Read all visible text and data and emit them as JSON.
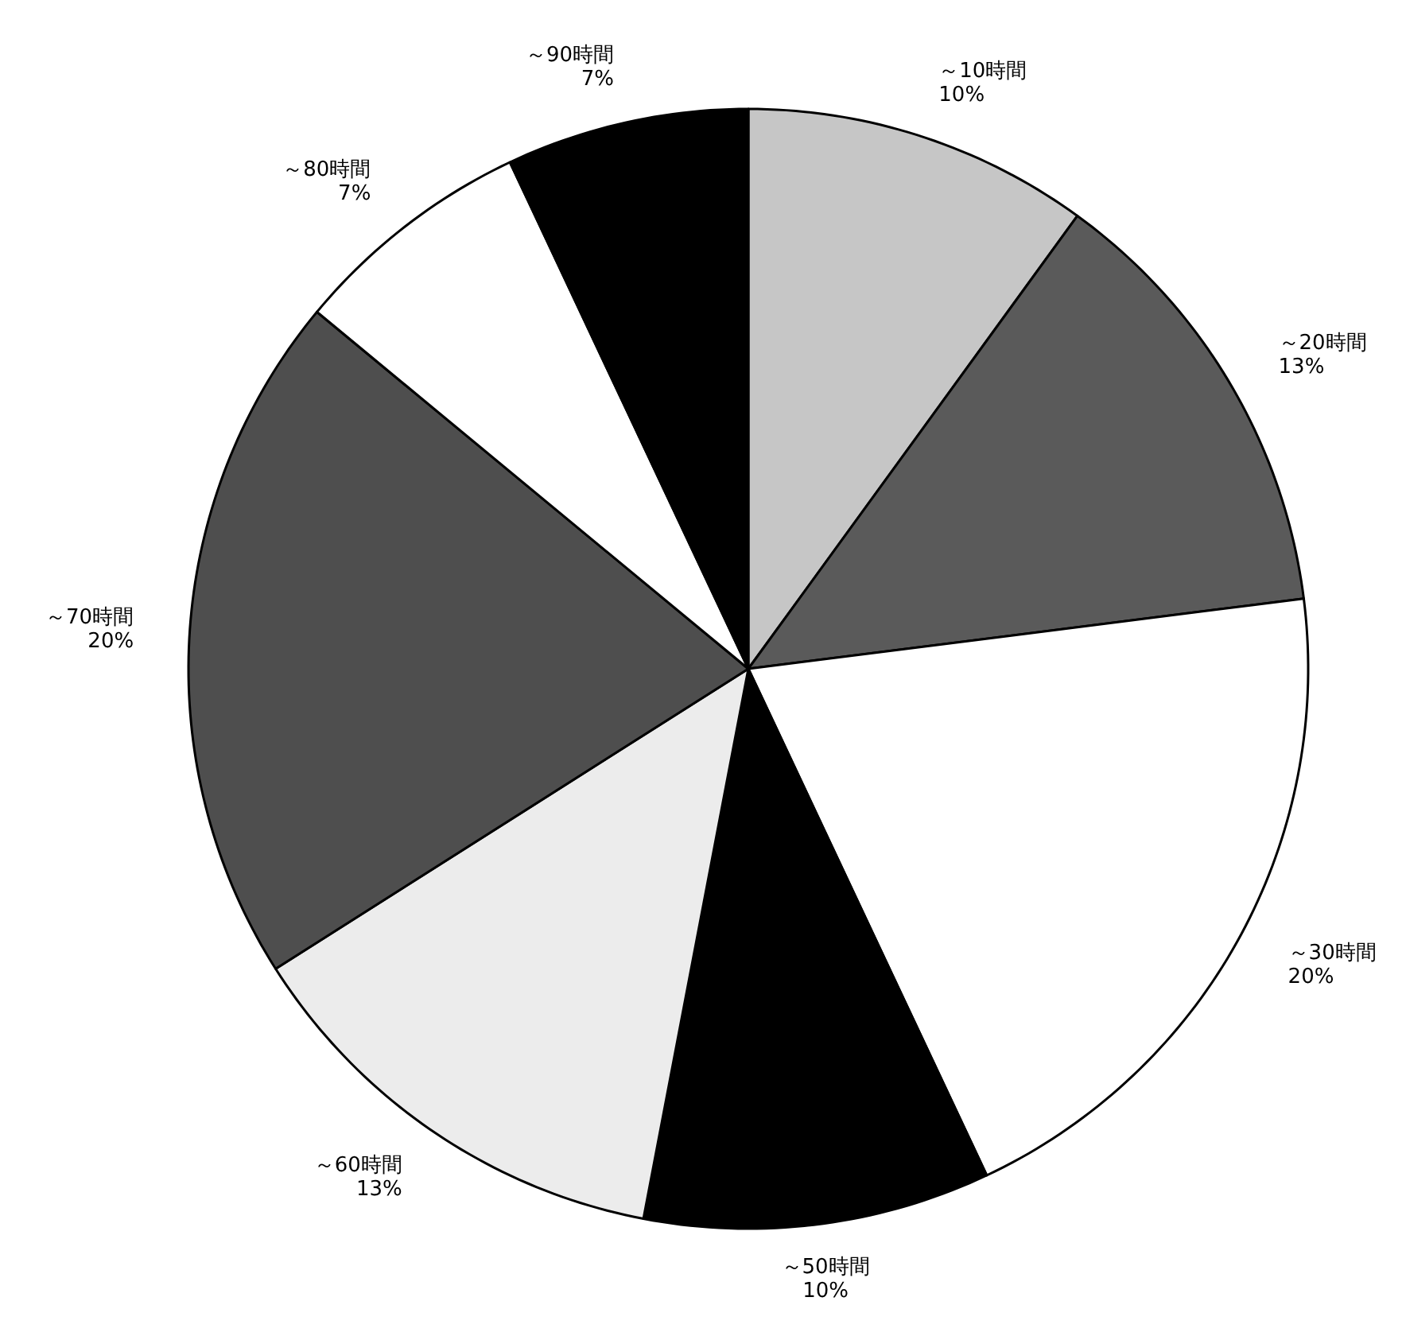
{
  "chart_data": {
    "type": "pie",
    "categories": [
      "～10時間",
      "～20時間",
      "～30時間",
      "～50時間",
      "～60時間",
      "～70時間",
      "～80時間",
      "～90時間"
    ],
    "values": [
      10,
      13,
      20,
      10,
      13,
      20,
      7,
      7
    ],
    "value_labels": [
      "10%",
      "13%",
      "20%",
      "10%",
      "13%",
      "20%",
      "7%",
      "7%"
    ],
    "colors": [
      "#c6c6c6",
      "#5a5a5a",
      "#ffffff",
      "#000000",
      "#ececec",
      "#4e4e4e",
      "#ffffff",
      "#000000"
    ]
  }
}
